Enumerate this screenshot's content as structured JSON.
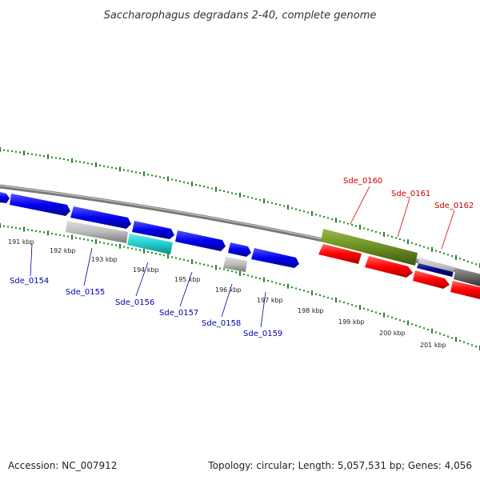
{
  "title": "Saccharophagus degradans 2-40, complete genome",
  "footer": {
    "accession": "Accession: NC_007912",
    "summary": "Topology: circular; Length: 5,057,531 bp; Genes: 4,056"
  },
  "colors": {
    "backbone": "#888888",
    "tick": "#1a8a1a",
    "forward_label": "#0000aa",
    "reverse_label": "#cc0000",
    "blue": "#0000ee",
    "gray": "#bbbbbb",
    "cyan": "#22cccc",
    "olive": "#6b8e23",
    "red": "#ff0000",
    "navy": "#000088",
    "darkgray": "#666666"
  },
  "scale_labels": [
    "191 kbp",
    "192 kbp",
    "193 kbp",
    "194 kbp",
    "195 kbp",
    "196 kbp",
    "197 kbp",
    "198 kbp",
    "199 kbp",
    "200 kbp",
    "201 kbp"
  ],
  "gene_labels": [
    {
      "text": "Sde_0154",
      "strand": "forward"
    },
    {
      "text": "Sde_0155",
      "strand": "forward"
    },
    {
      "text": "Sde_0156",
      "strand": "forward"
    },
    {
      "text": "Sde_0157",
      "strand": "forward"
    },
    {
      "text": "Sde_0158",
      "strand": "forward"
    },
    {
      "text": "Sde_0159",
      "strand": "forward"
    },
    {
      "text": "Sde_0160",
      "strand": "reverse"
    },
    {
      "text": "Sde_0161",
      "strand": "reverse"
    },
    {
      "text": "Sde_0162",
      "strand": "reverse"
    }
  ]
}
